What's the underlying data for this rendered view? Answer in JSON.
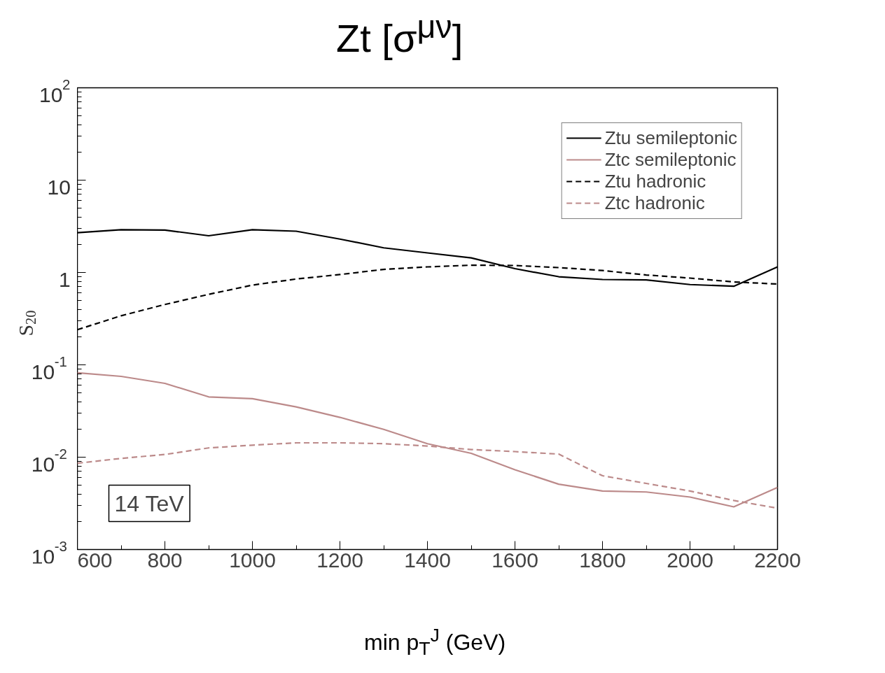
{
  "chart_data": {
    "type": "line",
    "title": "Zt [σ$^{μν}$]",
    "xlabel": "min p$_{T}$$^{J}$ (GeV)",
    "ylabel": "S$_{20}$",
    "log": "y",
    "legend": "top right",
    "grid": false,
    "marker": "none",
    "line_style": "solid",
    "x": [
      600,
      700,
      800,
      900,
      1000,
      1100,
      1200,
      1300,
      1400,
      1500,
      1600,
      1700,
      1800,
      1900,
      2000,
      2100,
      2200
    ],
    "xlim": [
      600,
      2200
    ],
    "xticks": [
      600,
      800,
      1000,
      1200,
      1400,
      1600,
      1800,
      2000,
      2200
    ],
    "ylim": [
      0.001,
      100
    ],
    "yticks": [
      {
        "value": 0.001,
        "label": "10$^{-3}$"
      },
      {
        "value": 0.01,
        "label": "10$^{-2}$"
      },
      {
        "value": 0.1,
        "label": "10$^{-1}$"
      },
      1,
      10,
      {
        "value": 100,
        "label": "10$^{2}$"
      }
    ],
    "annotations": [
      "14 TeV"
    ],
    "series": [
      {
        "name": "Ztu semileptonic",
        "color": "#000000",
        "values": [
          2.7,
          2.9,
          2.88,
          2.5,
          2.9,
          2.8,
          2.3,
          1.85,
          1.63,
          1.44,
          1.1,
          0.9,
          0.84,
          0.83,
          0.74,
          0.71,
          1.15
        ]
      },
      {
        "name": "Ztc semileptonic",
        "color": "#bc8a8a",
        "values": [
          0.082,
          0.075,
          0.063,
          0.045,
          0.043,
          0.035,
          0.027,
          0.02,
          0.014,
          0.011,
          0.0073,
          0.0051,
          0.0043,
          0.0042,
          0.0037,
          0.0029,
          0.0047
        ]
      },
      {
        "name": "Ztu hadronic",
        "color": "#000000",
        "line_style": "dashed",
        "values": [
          0.24,
          0.34,
          0.45,
          0.58,
          0.73,
          0.85,
          0.95,
          1.08,
          1.15,
          1.2,
          1.19,
          1.13,
          1.05,
          0.94,
          0.87,
          0.79,
          0.75
        ]
      },
      {
        "name": "Ztc hadronic",
        "color": "#bc8a8a",
        "line_style": "dashed",
        "values": [
          0.0086,
          0.0097,
          0.0107,
          0.0126,
          0.0135,
          0.0143,
          0.0143,
          0.014,
          0.0132,
          0.0121,
          0.0115,
          0.0108,
          0.0063,
          0.0052,
          0.0043,
          0.0034,
          0.0028
        ]
      }
    ]
  }
}
